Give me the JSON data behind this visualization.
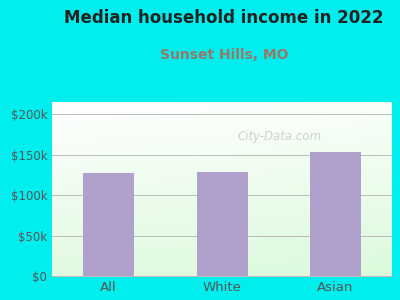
{
  "title": "Median household income in 2022",
  "subtitle": "Sunset Hills, MO",
  "title_color": "#222222",
  "subtitle_color": "#997766",
  "background_color": "#00EEEE",
  "categories": [
    "All",
    "White",
    "Asian"
  ],
  "values": [
    127000,
    128000,
    153000
  ],
  "bar_color": "#b0a0cc",
  "yticks": [
    0,
    50000,
    100000,
    150000,
    200000
  ],
  "ytick_labels": [
    "$0",
    "$50k",
    "$100k",
    "$150k",
    "$200k"
  ],
  "ylim": [
    0,
    215000
  ],
  "watermark": "City-Data.com",
  "watermark_color": "#c8c8c8",
  "grid_color": "#bbbbbb",
  "tick_color": "#555555",
  "title_fontsize": 12,
  "subtitle_fontsize": 10,
  "tick_fontsize": 8.5,
  "xtick_fontsize": 9.5
}
